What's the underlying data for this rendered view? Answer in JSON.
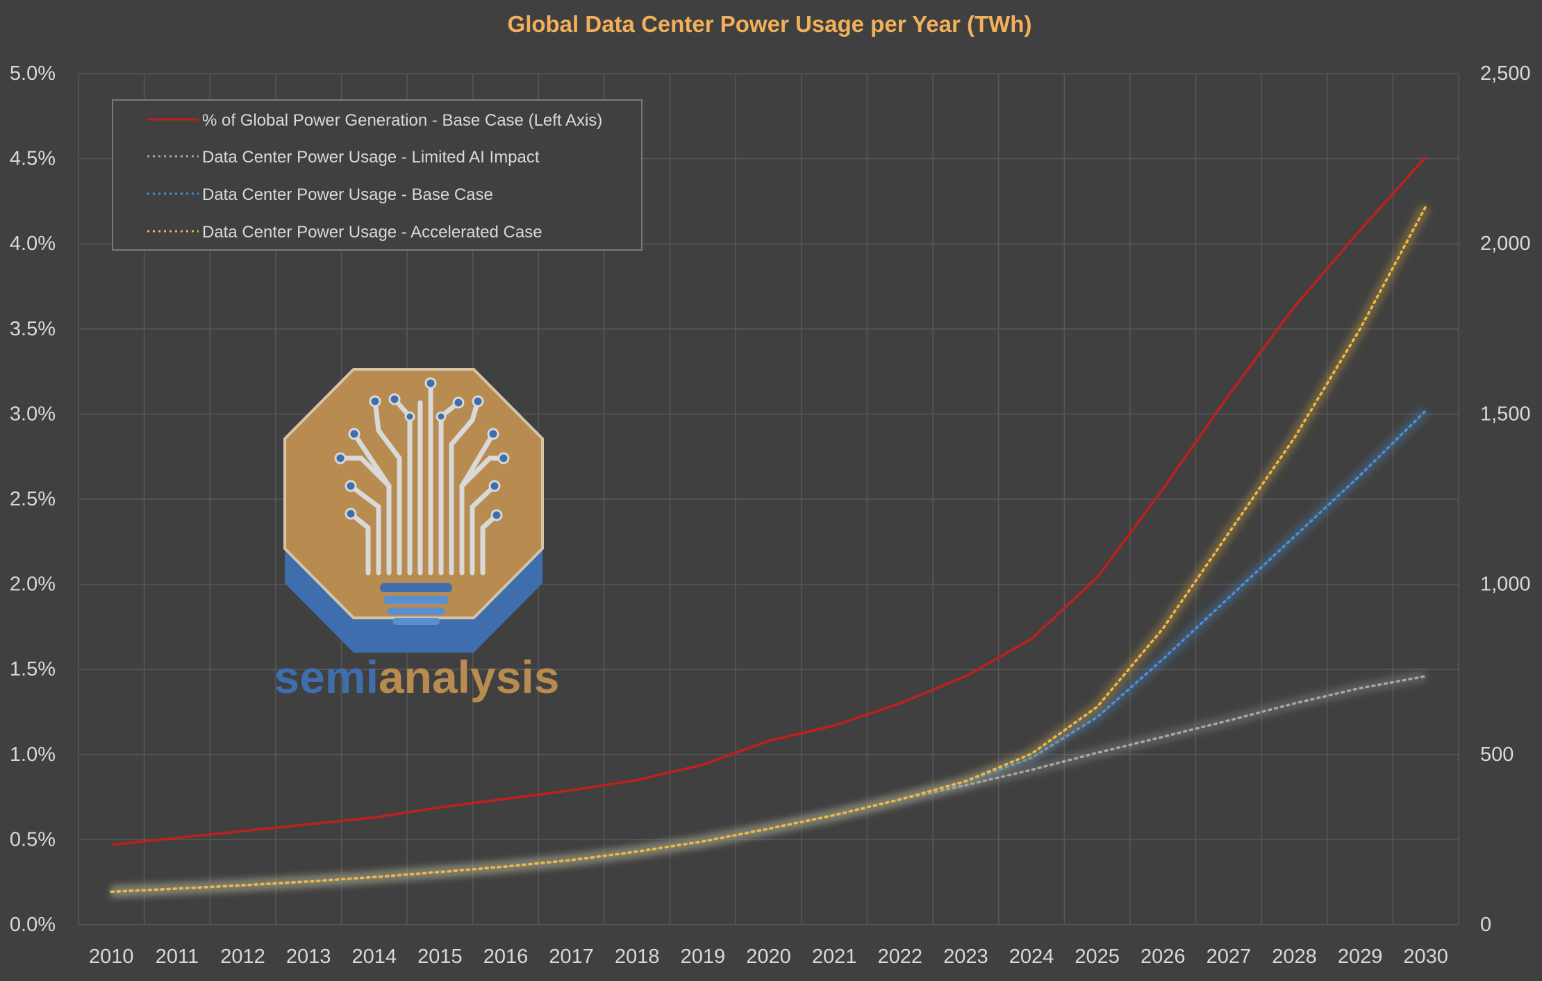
{
  "chart_data": {
    "type": "line",
    "title": "Global Data Center Power Usage per Year (TWh)",
    "x": [
      "2010",
      "2011",
      "2012",
      "2013",
      "2014",
      "2015",
      "2016",
      "2017",
      "2018",
      "2019",
      "2020",
      "2021",
      "2022",
      "2023",
      "2024",
      "2025",
      "2026",
      "2027",
      "2028",
      "2029",
      "2030"
    ],
    "y_left": {
      "ylim": [
        0,
        5.0
      ],
      "ticks": [
        "0.0%",
        "0.5%",
        "1.0%",
        "1.5%",
        "2.0%",
        "2.5%",
        "3.0%",
        "3.5%",
        "4.0%",
        "4.5%",
        "5.0%"
      ]
    },
    "y_right": {
      "ylim": [
        0,
        2500
      ],
      "ticks": [
        "0",
        "500",
        "1,000",
        "1,500",
        "2,000",
        "2,500"
      ]
    },
    "grid": true,
    "legend_position": "top-left",
    "series": [
      {
        "name": "% of Global Power Generation - Base Case (Left Axis)",
        "axis": "left",
        "unit": "percent",
        "style": "solid",
        "color": "#c0201c",
        "values": [
          0.47,
          0.51,
          0.55,
          0.59,
          0.63,
          0.69,
          0.74,
          0.79,
          0.85,
          0.94,
          1.08,
          1.17,
          1.3,
          1.46,
          1.68,
          2.04,
          2.56,
          3.11,
          3.63,
          4.08,
          4.51
        ]
      },
      {
        "name": "Data Center Power Usage - Limited AI Impact",
        "axis": "right",
        "unit": "TWh",
        "style": "dotted",
        "color": "#a6a6a6",
        "values": [
          97,
          106,
          116,
          127,
          140,
          155,
          171,
          190,
          215,
          245,
          282,
          322,
          368,
          410,
          455,
          505,
          552,
          600,
          650,
          695,
          730
        ]
      },
      {
        "name": "Data Center Power Usage - Base Case",
        "axis": "right",
        "unit": "TWh",
        "style": "dotted",
        "color": "#4a90d9",
        "values": [
          97,
          106,
          116,
          127,
          140,
          155,
          171,
          190,
          215,
          245,
          282,
          322,
          368,
          420,
          490,
          610,
          780,
          960,
          1140,
          1320,
          1510
        ]
      },
      {
        "name": "Data Center Power Usage - Accelerated Case",
        "axis": "right",
        "unit": "TWh",
        "style": "dotted",
        "color": "#f0b840",
        "values": [
          97,
          106,
          116,
          127,
          140,
          155,
          171,
          190,
          215,
          245,
          282,
          322,
          368,
          422,
          502,
          640,
          870,
          1150,
          1430,
          1750,
          2110
        ]
      }
    ]
  },
  "watermark": {
    "word_part1": "semi",
    "word_part2": "analysis",
    "color_primary": "#3f6eae",
    "color_secondary": "#b88b50"
  },
  "colors": {
    "background": "#404040",
    "grid": "#555555",
    "axis_text": "#d9d9d9",
    "title": "#f2b05a",
    "legend_border": "#8c8c8c"
  }
}
